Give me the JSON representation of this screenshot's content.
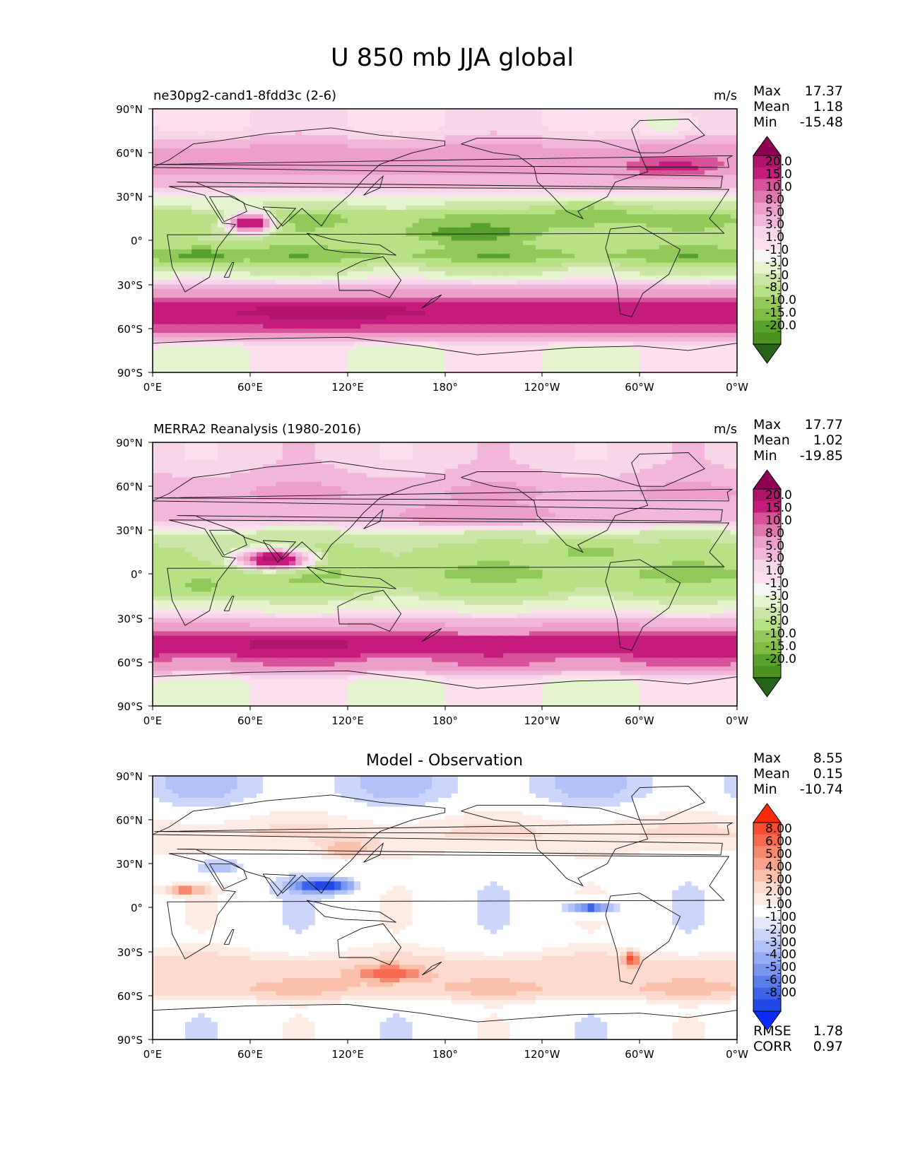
{
  "figure": {
    "title": "U 850 mb JJA global"
  },
  "chart_data": [
    {
      "type": "heatmap",
      "title": "ne30pg2-cand1-8fdd3c (2-6)",
      "units": "m/s",
      "stats": [
        {
          "label": "Max",
          "value": "17.37"
        },
        {
          "label": "Mean",
          "value": "1.18"
        },
        {
          "label": "Min",
          "value": "-15.48"
        }
      ],
      "x_ticks": [
        "0°E",
        "60°E",
        "120°E",
        "180°",
        "120°W",
        "60°W",
        "0°W"
      ],
      "y_ticks": [
        "90°N",
        "60°N",
        "30°N",
        "0°",
        "30°S",
        "60°S",
        "90°S"
      ],
      "xlim": [
        0,
        360
      ],
      "ylim": [
        -90,
        90
      ],
      "colorbar": {
        "levels": [
          "20.0",
          "15.0",
          "10.0",
          "8.0",
          "5.0",
          "3.0",
          "1.0",
          "-1.0",
          "-3.0",
          "-5.0",
          "-8.0",
          "-10.0",
          "-15.0",
          "-20.0"
        ],
        "colors": [
          "#8e0152",
          "#b0156b",
          "#c51b7d",
          "#d8529a",
          "#de77ae",
          "#ec9fc8",
          "#f1b6da",
          "#f7d6e9",
          "#fde0ef",
          "#f7f7f7",
          "#e6f5d0",
          "#cbe6a6",
          "#b8e186",
          "#93c85a",
          "#7fbc41",
          "#57a12d",
          "#4d9221",
          "#276419"
        ]
      },
      "bands": [
        {
          "lat": 80,
          "value": 1
        },
        {
          "lat": 55,
          "value": 7
        },
        {
          "lat": 40,
          "value": 4
        },
        {
          "lat": 25,
          "value": -3
        },
        {
          "lat": 15,
          "value": -8
        },
        {
          "lat": 0,
          "value": -6
        },
        {
          "lat": -10,
          "value": -9
        },
        {
          "lat": -22,
          "value": -3
        },
        {
          "lat": -35,
          "value": 6
        },
        {
          "lat": -48,
          "value": 14
        },
        {
          "lat": -60,
          "value": 9
        },
        {
          "lat": -75,
          "value": -1
        }
      ],
      "features": [
        {
          "lon": 60,
          "lat": 12,
          "value": 16,
          "rlon": 14,
          "rlat": 7
        },
        {
          "lon": 270,
          "lat": 18,
          "value": -10,
          "rlon": 30,
          "rlat": 8
        },
        {
          "lon": 195,
          "lat": 5,
          "value": -11,
          "rlon": 45,
          "rlat": 8
        },
        {
          "lon": 30,
          "lat": -10,
          "value": -11,
          "rlon": 20,
          "rlat": 6
        },
        {
          "lon": 110,
          "lat": -50,
          "value": 17,
          "rlon": 60,
          "rlat": 6
        },
        {
          "lon": 320,
          "lat": 50,
          "value": 11,
          "rlon": 30,
          "rlat": 6
        },
        {
          "lon": 315,
          "lat": 80,
          "value": -2,
          "rlon": 18,
          "rlat": 8
        }
      ]
    },
    {
      "type": "heatmap",
      "title": "MERRA2 Reanalysis (1980-2016)",
      "units": "m/s",
      "stats": [
        {
          "label": "Max",
          "value": "17.77"
        },
        {
          "label": "Mean",
          "value": "1.02"
        },
        {
          "label": "Min",
          "value": "-19.85"
        }
      ],
      "x_ticks": [
        "0°E",
        "60°E",
        "120°E",
        "180°",
        "120°W",
        "60°W",
        "0°W"
      ],
      "y_ticks": [
        "90°N",
        "60°N",
        "30°N",
        "0°",
        "30°S",
        "60°S",
        "90°S"
      ],
      "xlim": [
        0,
        360
      ],
      "ylim": [
        -90,
        90
      ],
      "colorbar": {
        "levels": [
          "20.0",
          "15.0",
          "10.0",
          "8.0",
          "5.0",
          "3.0",
          "1.0",
          "-1.0",
          "-3.0",
          "-5.0",
          "-8.0",
          "-10.0",
          "-15.0",
          "-20.0"
        ],
        "colors": [
          "#8e0152",
          "#b0156b",
          "#c51b7d",
          "#d8529a",
          "#de77ae",
          "#ec9fc8",
          "#f1b6da",
          "#f7d6e9",
          "#fde0ef",
          "#f7f7f7",
          "#e6f5d0",
          "#cbe6a6",
          "#b8e186",
          "#93c85a",
          "#7fbc41",
          "#57a12d",
          "#4d9221",
          "#276419"
        ]
      },
      "bands": [
        {
          "lat": 80,
          "value": 2
        },
        {
          "lat": 55,
          "value": 5
        },
        {
          "lat": 40,
          "value": 4
        },
        {
          "lat": 25,
          "value": -4
        },
        {
          "lat": 15,
          "value": -6
        },
        {
          "lat": 0,
          "value": -8
        },
        {
          "lat": -10,
          "value": -6
        },
        {
          "lat": -22,
          "value": -2
        },
        {
          "lat": -35,
          "value": 5
        },
        {
          "lat": -48,
          "value": 13
        },
        {
          "lat": -60,
          "value": 8
        },
        {
          "lat": -75,
          "value": -1
        }
      ],
      "features": [
        {
          "lon": 75,
          "lat": 10,
          "value": 17,
          "rlon": 22,
          "rlat": 7
        },
        {
          "lon": 270,
          "lat": 15,
          "value": -9,
          "rlon": 28,
          "rlat": 8
        },
        {
          "lon": 30,
          "lat": -8,
          "value": -9,
          "rlon": 20,
          "rlat": 6
        },
        {
          "lon": 90,
          "lat": -48,
          "value": 17,
          "rlon": 40,
          "rlat": 6
        },
        {
          "lon": 330,
          "lat": -50,
          "value": 14,
          "rlon": 25,
          "rlat": 7
        },
        {
          "lon": 200,
          "lat": 40,
          "value": 8,
          "rlon": 40,
          "rlat": 6
        }
      ]
    },
    {
      "type": "heatmap",
      "title": "Model - Observation",
      "units": "",
      "stats": [
        {
          "label": "Max",
          "value": "8.55"
        },
        {
          "label": "Mean",
          "value": "0.15"
        },
        {
          "label": "Min",
          "value": "-10.74"
        }
      ],
      "extra_stats": [
        {
          "label": "RMSE",
          "value": "1.78"
        },
        {
          "label": "CORR",
          "value": "0.97"
        }
      ],
      "x_ticks": [
        "0°E",
        "60°E",
        "120°E",
        "180°",
        "120°W",
        "60°W",
        "0°W"
      ],
      "y_ticks": [
        "90°N",
        "60°N",
        "30°N",
        "0°",
        "30°S",
        "60°S",
        "90°S"
      ],
      "xlim": [
        0,
        360
      ],
      "ylim": [
        -90,
        90
      ],
      "colorbar": {
        "levels": [
          "8.00",
          "6.00",
          "5.00",
          "4.00",
          "3.00",
          "2.00",
          "1.00",
          "-1.00",
          "-2.00",
          "-3.00",
          "-4.00",
          "-5.00",
          "-6.00",
          "-8.00"
        ],
        "colors": [
          "#ff2a0a",
          "#f54c32",
          "#f56a50",
          "#f6886e",
          "#f8a48c",
          "#fac0ab",
          "#fcdacd",
          "#fdecE4",
          "#ffffff",
          "#e4eafc",
          "#ccd6fa",
          "#b0c2f7",
          "#95abf3",
          "#7a95ef",
          "#5b7deb",
          "#3d63e8",
          "#2348ea",
          "#0a2cff"
        ]
      },
      "bands": [
        {
          "lat": 82,
          "value": -1.5
        },
        {
          "lat": 50,
          "value": 2
        },
        {
          "lat": 25,
          "value": 0
        },
        {
          "lat": 0,
          "value": 0
        },
        {
          "lat": -20,
          "value": 0
        },
        {
          "lat": -40,
          "value": 2.5
        },
        {
          "lat": -55,
          "value": 3
        },
        {
          "lat": -70,
          "value": 0
        }
      ],
      "features": [
        {
          "lon": 105,
          "lat": 15,
          "value": -7,
          "rlon": 20,
          "rlat": 5
        },
        {
          "lon": 270,
          "lat": 0,
          "value": -6,
          "rlon": 15,
          "rlat": 4
        },
        {
          "lon": 20,
          "lat": 12,
          "value": 5,
          "rlon": 15,
          "rlat": 3
        },
        {
          "lon": 145,
          "lat": -45,
          "value": 6,
          "rlon": 20,
          "rlat": 5
        },
        {
          "lon": 295,
          "lat": -35,
          "value": 7,
          "rlon": 4,
          "rlat": 5
        },
        {
          "lon": 120,
          "lat": 40,
          "value": 4,
          "rlon": 15,
          "rlat": 6
        },
        {
          "lon": 40,
          "lat": 28,
          "value": -3,
          "rlon": 15,
          "rlat": 6
        }
      ]
    }
  ]
}
